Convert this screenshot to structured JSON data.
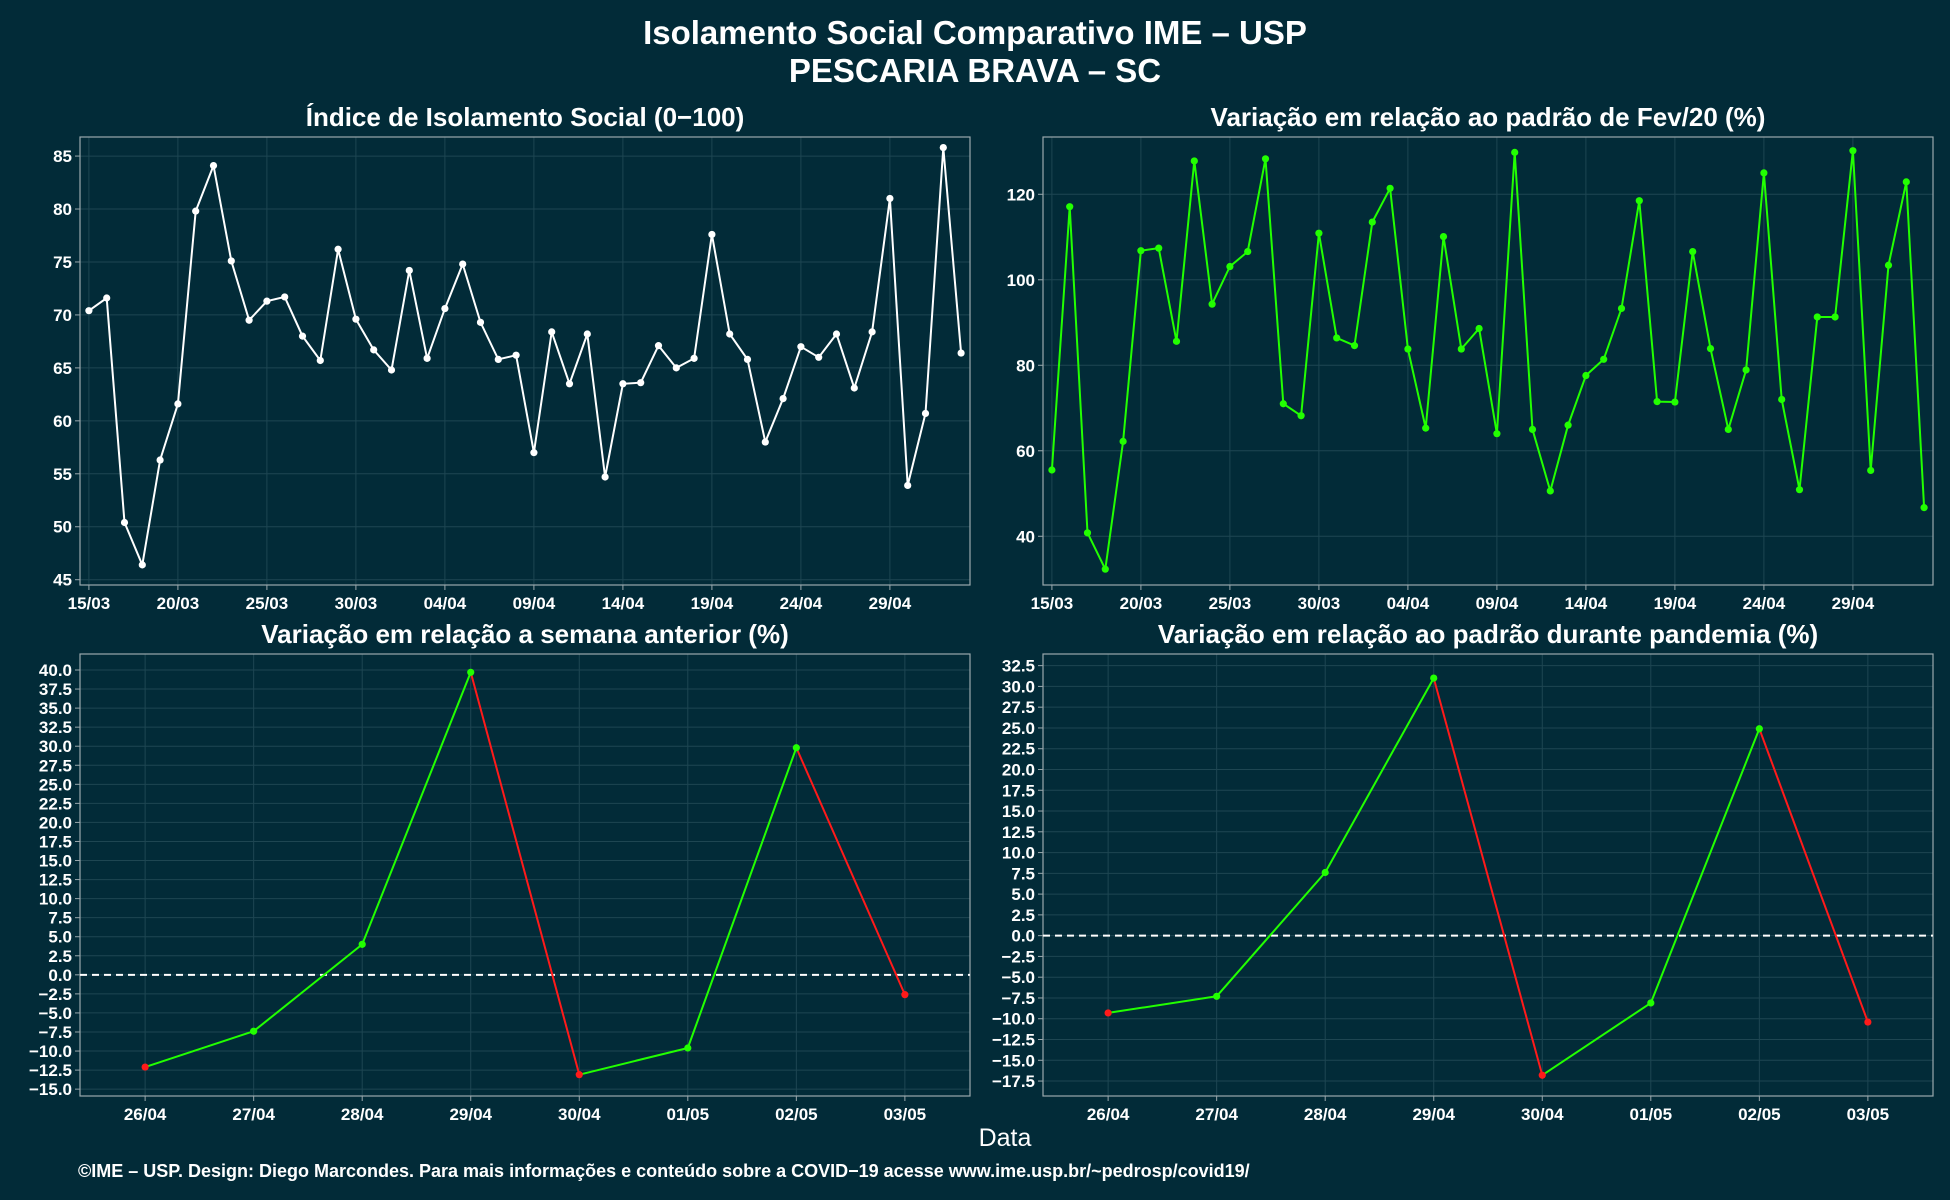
{
  "header": {
    "title_line1": "Isolamento Social Comparativo IME – USP",
    "title_line2": "PESCARIA BRAVA – SC"
  },
  "footer": {
    "xlabel": "Data",
    "credits": "©IME – USP. Design: Diego Marcondes. Para mais informações e conteúdo sobre a COVID−19 acesse www.ime.usp.br/~pedrosp/covid19/"
  },
  "colors": {
    "background": "#022b38",
    "panel_border": "#9aa8ad",
    "grid": "#1e4652",
    "white_line": "#ffffff",
    "green_line": "#22ff00",
    "red_line": "#ff1a1a"
  },
  "chart_data": [
    {
      "type": "line",
      "title": "Índice de Isolamento Social (0−100)",
      "x_tick_labels": [
        "15/03",
        "20/03",
        "25/03",
        "30/03",
        "04/04",
        "09/04",
        "14/04",
        "19/04",
        "24/04",
        "29/04"
      ],
      "x_tick_index": [
        0,
        5,
        10,
        15,
        20,
        25,
        30,
        35,
        40,
        45
      ],
      "ylim": [
        44.5,
        86.8
      ],
      "y_ticks": [
        45,
        50,
        55,
        60,
        65,
        70,
        75,
        80,
        85
      ],
      "y_tick_labels": [
        "45",
        "50",
        "55",
        "60",
        "65",
        "70",
        "75",
        "80",
        "85"
      ],
      "color": "#ffffff",
      "values": [
        70.4,
        71.6,
        50.4,
        46.4,
        56.3,
        61.6,
        79.8,
        84.1,
        75.1,
        69.5,
        71.3,
        71.7,
        68.0,
        65.7,
        76.2,
        69.6,
        66.7,
        64.8,
        74.2,
        65.9,
        70.6,
        74.8,
        69.3,
        65.8,
        66.2,
        57.0,
        68.4,
        63.5,
        68.2,
        54.7,
        63.5,
        63.6,
        67.1,
        65.0,
        65.9,
        77.6,
        68.2,
        65.8,
        58.0,
        62.1,
        67.0,
        66.0,
        68.2,
        63.1,
        68.4,
        81.0,
        53.9,
        60.7,
        85.8,
        66.4
      ]
    },
    {
      "type": "line",
      "title": "Variação em relação ao padrão de Fev/20 (%)",
      "x_tick_labels": [
        "15/03",
        "20/03",
        "25/03",
        "30/03",
        "04/04",
        "09/04",
        "14/04",
        "19/04",
        "24/04",
        "29/04"
      ],
      "x_tick_index": [
        0,
        5,
        10,
        15,
        20,
        25,
        30,
        35,
        40,
        45
      ],
      "ylim": [
        28.6,
        133.4
      ],
      "y_ticks": [
        40,
        60,
        80,
        100,
        120
      ],
      "y_tick_labels": [
        "40",
        "60",
        "80",
        "100",
        "120"
      ],
      "color": "#22ff00",
      "values": [
        55.5,
        117.1,
        40.8,
        32.3,
        62.2,
        106.8,
        107.4,
        85.6,
        127.8,
        94.3,
        103.1,
        106.6,
        128.3,
        71.0,
        68.2,
        110.9,
        86.4,
        84.6,
        113.5,
        121.4,
        83.8,
        65.3,
        110.1,
        83.8,
        88.6,
        64.0,
        129.8,
        65.0,
        50.6,
        66.0,
        77.6,
        81.4,
        93.3,
        118.5,
        71.5,
        71.4,
        106.6,
        83.9,
        65.0,
        78.9,
        125.0,
        72.0,
        50.9,
        91.3,
        91.3,
        130.2,
        55.4,
        103.4,
        122.9,
        46.7
      ]
    },
    {
      "type": "line",
      "title": "Variação em relação a semana anterior (%)",
      "categories": [
        "26/04",
        "27/04",
        "28/04",
        "29/04",
        "30/04",
        "01/05",
        "02/05",
        "03/05"
      ],
      "values": [
        -12.1,
        -7.4,
        4.0,
        39.7,
        -13.1,
        -9.6,
        29.8,
        -2.6
      ],
      "ylim": [
        -15.9,
        42.1
      ],
      "y_ticks": [
        -15,
        -12.5,
        -10,
        -7.5,
        -5,
        -2.5,
        0,
        2.5,
        5,
        7.5,
        10,
        12.5,
        15,
        17.5,
        20,
        22.5,
        25,
        27.5,
        30,
        32.5,
        35,
        37.5,
        40
      ],
      "y_tick_labels": [
        "−15.0",
        "−12.5",
        "−10.0",
        "−7.5",
        "−5.0",
        "−2.5",
        "0.0",
        "2.5",
        "5.0",
        "7.5",
        "10.0",
        "12.5",
        "15.0",
        "17.5",
        "20.0",
        "22.5",
        "25.0",
        "27.5",
        "30.0",
        "32.5",
        "35.0",
        "37.5",
        "40.0"
      ],
      "up_color": "#22ff00",
      "down_color": "#ff1a1a",
      "reference_line": 0
    },
    {
      "type": "line",
      "title": "Variação em relação ao padrão durante pandemia (%)",
      "categories": [
        "26/04",
        "27/04",
        "28/04",
        "29/04",
        "30/04",
        "01/05",
        "02/05",
        "03/05"
      ],
      "values": [
        -9.3,
        -7.3,
        7.6,
        31.0,
        -16.8,
        -8.1,
        24.9,
        -10.4
      ],
      "ylim": [
        -19.3,
        33.9
      ],
      "y_ticks": [
        -17.5,
        -15,
        -12.5,
        -10,
        -7.5,
        -5,
        -2.5,
        0,
        2.5,
        5,
        7.5,
        10,
        12.5,
        15,
        17.5,
        20,
        22.5,
        25,
        27.5,
        30,
        32.5
      ],
      "y_tick_labels": [
        "−17.5",
        "−15.0",
        "−12.5",
        "−10.0",
        "−7.5",
        "−5.0",
        "−2.5",
        "0.0",
        "2.5",
        "5.0",
        "7.5",
        "10.0",
        "12.5",
        "15.0",
        "17.5",
        "20.0",
        "22.5",
        "25.0",
        "27.5",
        "30.0",
        "32.5"
      ],
      "up_color": "#22ff00",
      "down_color": "#ff1a1a",
      "reference_line": 0
    }
  ]
}
